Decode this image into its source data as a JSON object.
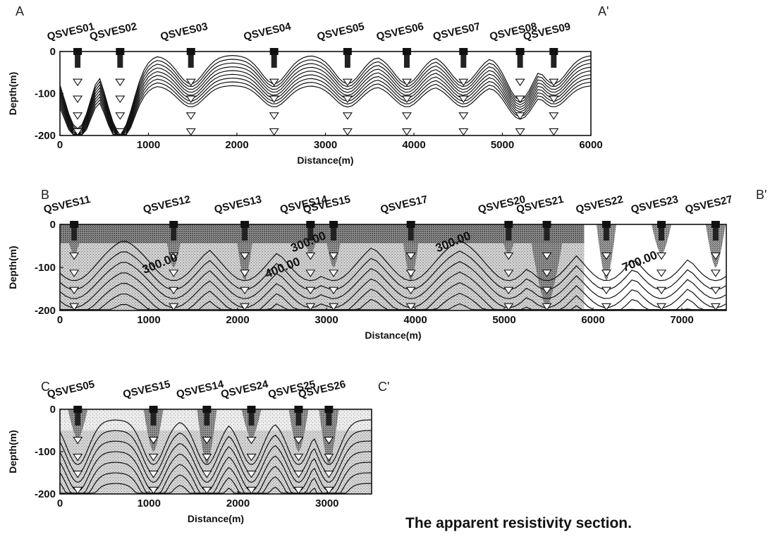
{
  "caption": "The apparent resistivity section.",
  "chart_data": [
    {
      "type": "contour",
      "section_start": "A",
      "section_end": "A'",
      "xlabel": "Distance(m)",
      "ylabel": "Depth(m)",
      "xlim": [
        0,
        6000
      ],
      "ylim": [
        -200,
        0
      ],
      "xticks": [
        "0",
        "1000",
        "2000",
        "3000",
        "4000",
        "5000",
        "6000"
      ],
      "yticks": [
        "0",
        "-100",
        "-200"
      ],
      "stations": [
        {
          "name": "QSVES01",
          "x": 200
        },
        {
          "name": "QSVES02",
          "x": 680
        },
        {
          "name": "QSVES03",
          "x": 1480
        },
        {
          "name": "QSVES04",
          "x": 2420
        },
        {
          "name": "QSVES05",
          "x": 3250
        },
        {
          "name": "QSVES06",
          "x": 3920
        },
        {
          "name": "QSVES07",
          "x": 4560
        },
        {
          "name": "QSVES08",
          "x": 5200
        },
        {
          "name": "QSVES09",
          "x": 5580
        }
      ],
      "contour_labels": []
    },
    {
      "type": "contour",
      "section_start": "B",
      "section_end": "B'",
      "xlabel": "Distance(m)",
      "ylabel": "Depth(m)",
      "xlim": [
        0,
        7500
      ],
      "ylim": [
        -200,
        0
      ],
      "xticks": [
        "0",
        "1000",
        "2000",
        "3000",
        "4000",
        "5000",
        "6000",
        "7000"
      ],
      "yticks": [
        "0",
        "-100",
        "-200"
      ],
      "stations": [
        {
          "name": "QSVES11",
          "x": 160
        },
        {
          "name": "QSVES12",
          "x": 1280
        },
        {
          "name": "QSVES13",
          "x": 2080
        },
        {
          "name": "QSVES14",
          "x": 2820
        },
        {
          "name": "QSVES15",
          "x": 3080
        },
        {
          "name": "QSVES17",
          "x": 3950
        },
        {
          "name": "QSVES20",
          "x": 5050
        },
        {
          "name": "QSVES21",
          "x": 5480
        },
        {
          "name": "QSVES22",
          "x": 6150
        },
        {
          "name": "QSVES23",
          "x": 6770
        },
        {
          "name": "QSVES27",
          "x": 7380
        }
      ],
      "contour_labels": [
        {
          "text": "300.00",
          "x": 950,
          "y": -115
        },
        {
          "text": "300.00",
          "x": 2620,
          "y": -65
        },
        {
          "text": "400.00",
          "x": 2330,
          "y": -125
        },
        {
          "text": "300.00",
          "x": 4250,
          "y": -65
        },
        {
          "text": "700.00",
          "x": 6350,
          "y": -110
        }
      ]
    },
    {
      "type": "contour",
      "section_start": "C",
      "section_end": "C'",
      "xlabel": "Distance(m)",
      "ylabel": "Depth(m)",
      "xlim": [
        0,
        3500
      ],
      "ylim": [
        -200,
        0
      ],
      "xticks": [
        "0",
        "1000",
        "2000",
        "3000"
      ],
      "yticks": [
        "0",
        "-100",
        "-200"
      ],
      "stations": [
        {
          "name": "QSVES05",
          "x": 200
        },
        {
          "name": "QSVES15",
          "x": 1050
        },
        {
          "name": "QSVES14",
          "x": 1650
        },
        {
          "name": "QSVES24",
          "x": 2150
        },
        {
          "name": "QSVES25",
          "x": 2680
        },
        {
          "name": "QSVES26",
          "x": 3020
        }
      ],
      "contour_labels": []
    }
  ]
}
